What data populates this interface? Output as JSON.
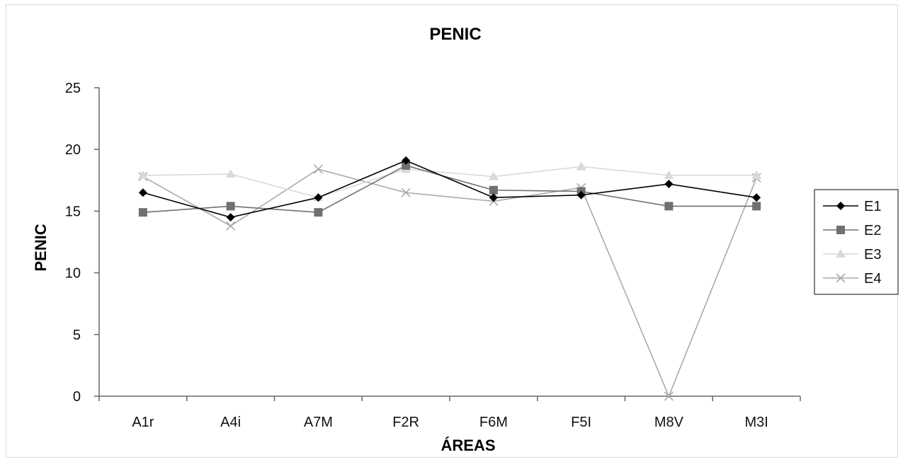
{
  "chart_data": {
    "type": "line",
    "title": "PENIC",
    "xlabel": "ÁREAS",
    "ylabel": "PENIC",
    "categories": [
      "A1r",
      "A4i",
      "A7M",
      "F2R",
      "F6M",
      "F5I",
      "M8V",
      "M3I"
    ],
    "ylim": [
      0,
      25
    ],
    "yticks": [
      0,
      5,
      10,
      15,
      20,
      25
    ],
    "grid": false,
    "legend_position": "right",
    "series": [
      {
        "name": "E1",
        "values": [
          16.5,
          14.5,
          16.1,
          19.1,
          16.1,
          16.3,
          17.2,
          16.1
        ],
        "color": "#000000",
        "marker": "diamond"
      },
      {
        "name": "E2",
        "values": [
          14.9,
          15.4,
          14.9,
          18.7,
          16.7,
          16.6,
          15.4,
          15.4
        ],
        "color": "#707070",
        "marker": "square"
      },
      {
        "name": "E3",
        "values": [
          17.9,
          18.0,
          16.1,
          18.4,
          17.8,
          18.6,
          17.9,
          17.9
        ],
        "color": "#d9d9d9",
        "marker": "triangle"
      },
      {
        "name": "E4",
        "values": [
          17.8,
          13.8,
          18.4,
          16.5,
          15.8,
          16.9,
          0.0,
          17.7
        ],
        "color": "#aaaaaa",
        "marker": "x"
      }
    ]
  }
}
